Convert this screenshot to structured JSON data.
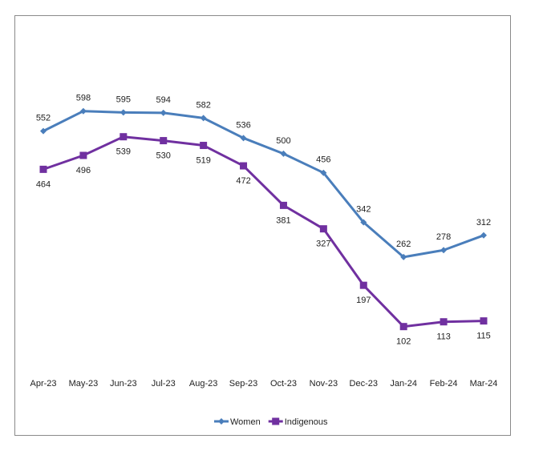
{
  "chart_data": {
    "type": "line",
    "title": "",
    "xlabel": "",
    "ylabel": "",
    "ylim": [
      0,
      780
    ],
    "grid": false,
    "y_axis_visible": false,
    "legend_position": "bottom",
    "categories": [
      "Apr-23",
      "May-23",
      "Jun-23",
      "Jul-23",
      "Aug-23",
      "Sep-23",
      "Oct-23",
      "Nov-23",
      "Dec-23",
      "Jan-24",
      "Feb-24",
      "Mar-24"
    ],
    "series": [
      {
        "name": "Women",
        "color": "#4a7ebb",
        "marker": "diamond",
        "label_position": "above",
        "values": [
          552,
          598,
          595,
          594,
          582,
          536,
          500,
          456,
          342,
          262,
          278,
          312
        ]
      },
      {
        "name": "Indigenous",
        "color": "#7030a0",
        "marker": "square",
        "label_position": "below",
        "values": [
          464,
          496,
          539,
          530,
          519,
          472,
          381,
          327,
          197,
          102,
          113,
          115
        ]
      }
    ]
  }
}
